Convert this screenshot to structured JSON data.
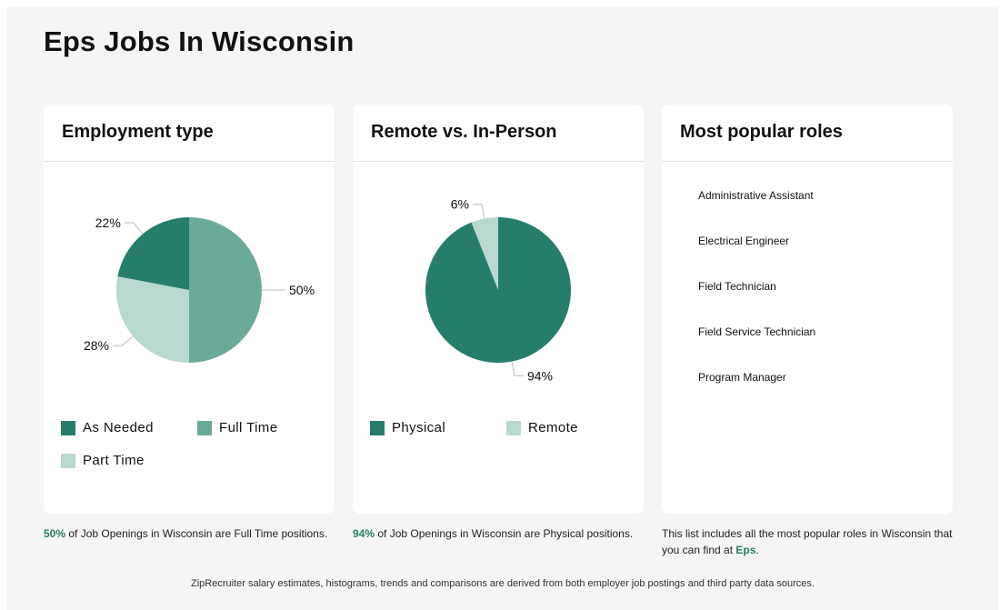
{
  "page": {
    "title": "Eps Jobs In Wisconsin"
  },
  "colors": {
    "dark": "#267e6a",
    "medium": "#6ba998",
    "light": "#b9d8d0",
    "accent": "#2a7d66"
  },
  "chart_data": [
    {
      "type": "pie",
      "title": "Employment type",
      "slices": [
        {
          "label": "Full Time",
          "value": 50,
          "display": "50%",
          "color": "#6ba998"
        },
        {
          "label": "Part Time",
          "value": 28,
          "display": "28%",
          "color": "#b9d8d0"
        },
        {
          "label": "As Needed",
          "value": 22,
          "display": "22%",
          "color": "#267e6a"
        }
      ],
      "legend": [
        "As Needed",
        "Full Time",
        "Part Time"
      ]
    },
    {
      "type": "pie",
      "title": "Remote vs. In-Person",
      "slices": [
        {
          "label": "Physical",
          "value": 94,
          "display": "94%",
          "color": "#267e6a"
        },
        {
          "label": "Remote",
          "value": 6,
          "display": "6%",
          "color": "#b9d8d0"
        }
      ],
      "legend": [
        "Physical",
        "Remote"
      ]
    }
  ],
  "roles_card": {
    "title": "Most popular roles",
    "items": [
      "Administrative Assistant",
      "Electrical Engineer",
      "Field Technician",
      "Field Service Technician",
      "Program Manager"
    ]
  },
  "footnotes": {
    "employment": {
      "highlight": "50%",
      "text": " of Job Openings in Wisconsin are Full Time positions."
    },
    "remote": {
      "highlight": "94%",
      "text": " of Job Openings in Wisconsin are Physical positions."
    },
    "roles": {
      "text": "This list includes all the most popular roles in Wisconsin that you can find at ",
      "highlight": "Eps",
      "suffix": "."
    }
  },
  "source_note": "ZipRecruiter salary estimates, histograms, trends and comparisons are derived from both employer job postings and third party data sources."
}
